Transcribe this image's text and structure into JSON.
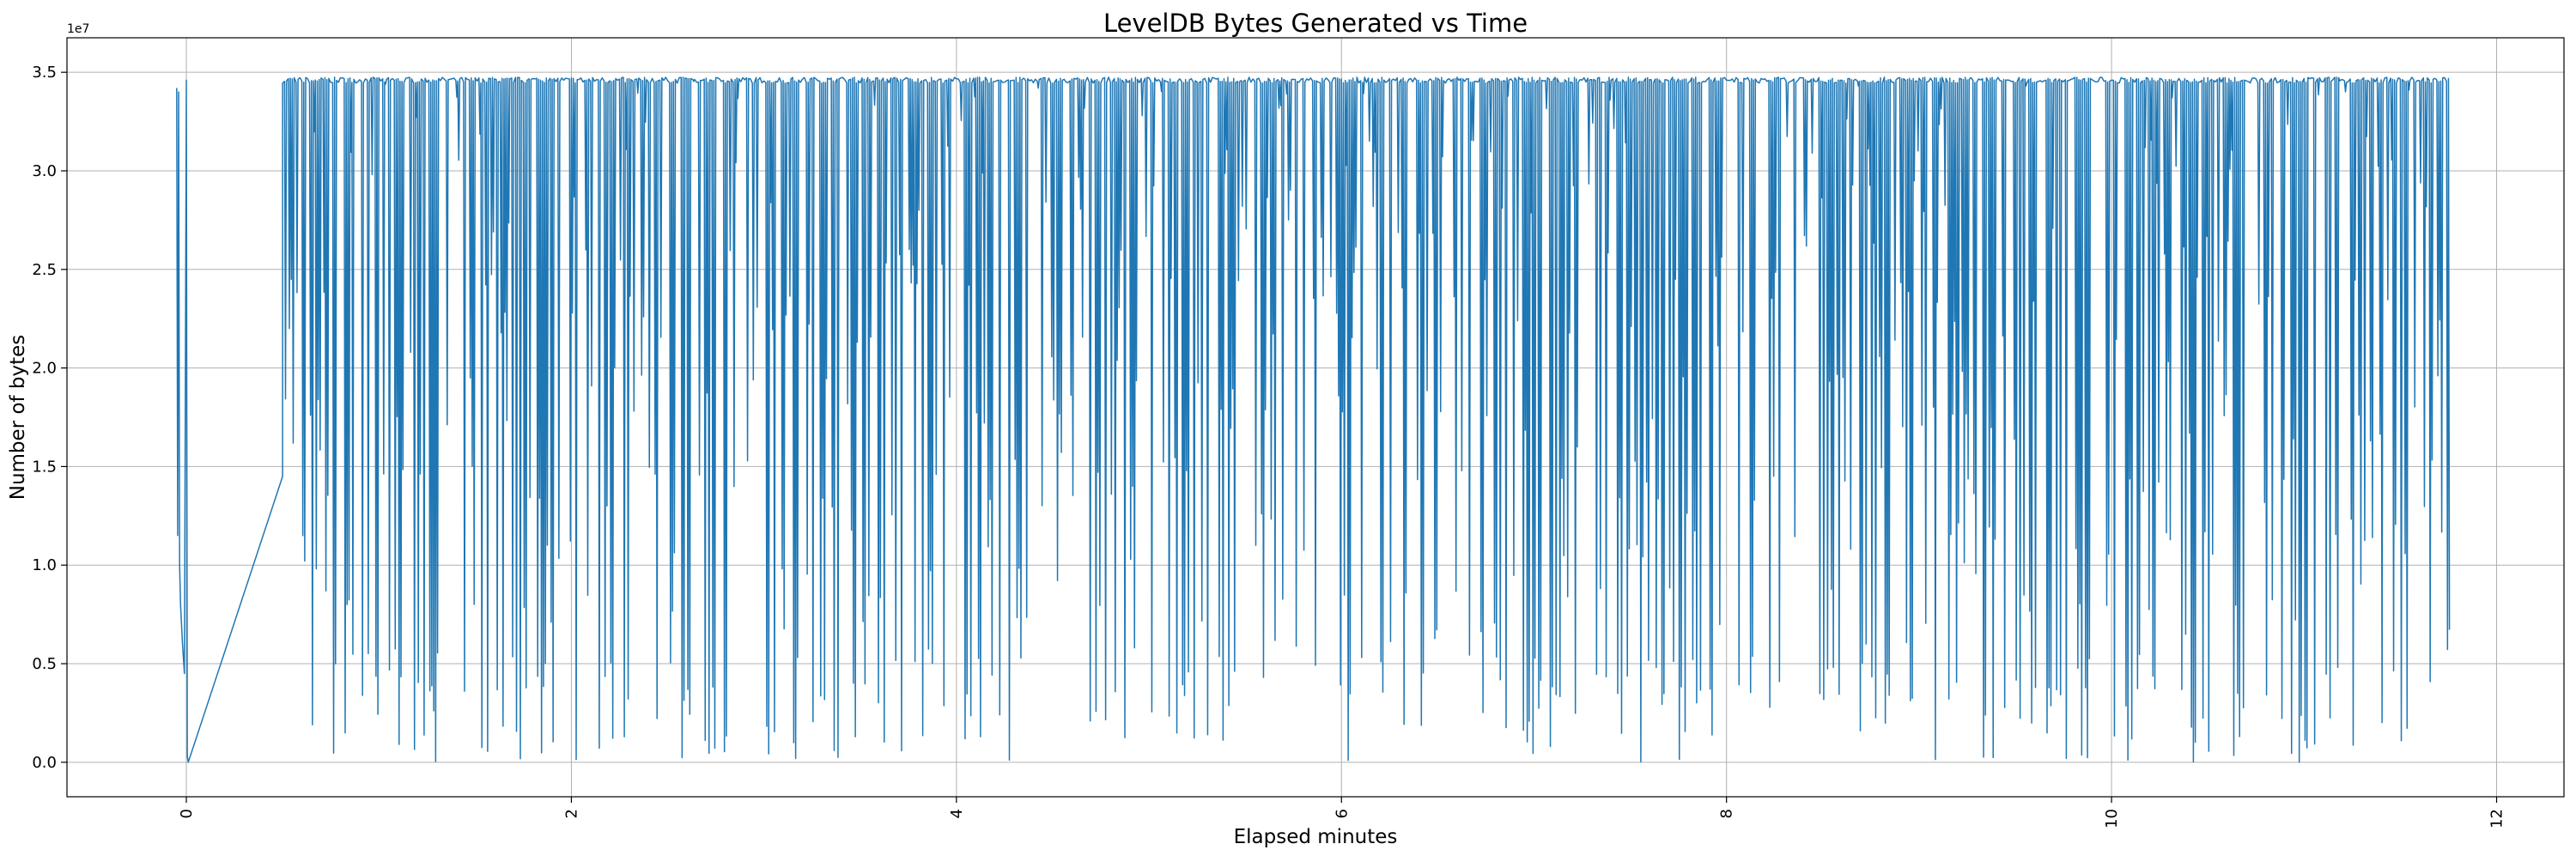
{
  "chart_data": {
    "type": "line",
    "title": "LevelDB Bytes Generated vs Time",
    "xlabel": "Elapsed minutes",
    "ylabel": "Number of bytes",
    "y_offset_label": "1e7",
    "xlim": [
      -0.62,
      12.35
    ],
    "ylim": [
      -1750000,
      36750000
    ],
    "grid": true,
    "x_ticks": [
      0,
      2,
      4,
      6,
      8,
      10,
      12
    ],
    "x_tick_labels": [
      "0",
      "2",
      "4",
      "6",
      "8",
      "10",
      "12"
    ],
    "y_ticks": [
      0,
      5000000,
      10000000,
      15000000,
      20000000,
      25000000,
      30000000,
      35000000
    ],
    "y_tick_labels": [
      "0.0",
      "0.5",
      "1.0",
      "1.5",
      "2.0",
      "2.5",
      "3.0",
      "3.5"
    ],
    "series": [
      {
        "name": "bytes",
        "color": "#1f77b4",
        "x": [
          -0.05,
          -0.045,
          -0.04,
          -0.035,
          -0.03,
          -0.02,
          -0.01,
          0.0,
          0.005,
          0.01,
          0.5
        ],
        "y": [
          34200000,
          11500000,
          34000000,
          10000000,
          8000000,
          6000000,
          4500000,
          34600000,
          300000,
          0,
          14500000
        ],
        "generated_pattern": {
          "start": 0.5,
          "end": 11.75,
          "step": 0.01,
          "baseline": 34600000,
          "min_dip": 0,
          "seed": 7
        }
      }
    ]
  }
}
